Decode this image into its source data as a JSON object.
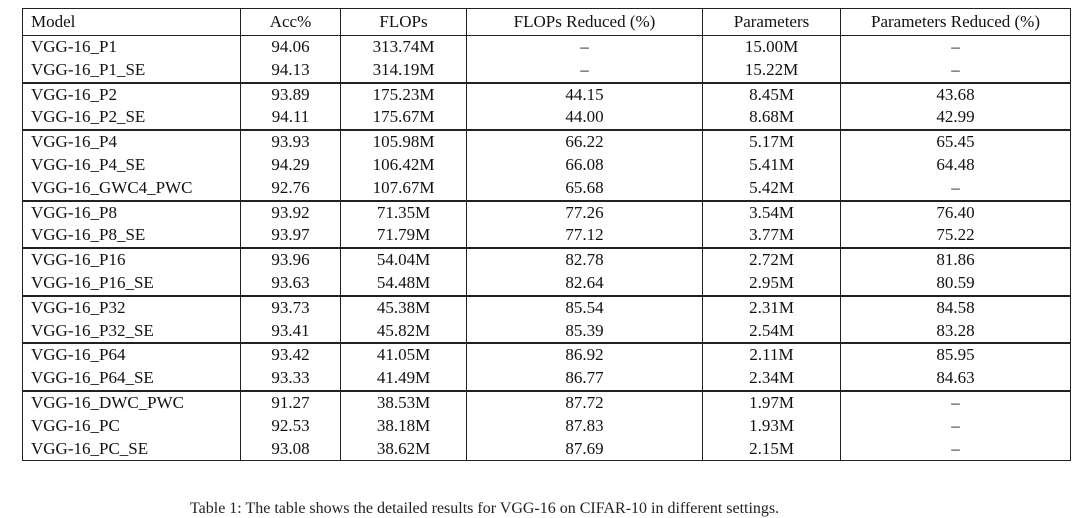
{
  "table": {
    "headers": [
      "Model",
      "Acc%",
      "FLOPs",
      "FLOPs Reduced (%)",
      "Parameters",
      "Parameters Reduced (%)"
    ],
    "groups": [
      [
        [
          "VGG-16_P1",
          "94.06",
          "313.74M",
          "–",
          "15.00M",
          "–"
        ],
        [
          "VGG-16_P1_SE",
          "94.13",
          "314.19M",
          "–",
          "15.22M",
          "–"
        ]
      ],
      [
        [
          "VGG-16_P2",
          "93.89",
          "175.23M",
          "44.15",
          "8.45M",
          "43.68"
        ],
        [
          "VGG-16_P2_SE",
          "94.11",
          "175.67M",
          "44.00",
          "8.68M",
          "42.99"
        ]
      ],
      [
        [
          "VGG-16_P4",
          "93.93",
          "105.98M",
          "66.22",
          "5.17M",
          "65.45"
        ],
        [
          "VGG-16_P4_SE",
          "94.29",
          "106.42M",
          "66.08",
          "5.41M",
          "64.48"
        ],
        [
          "VGG-16_GWC4_PWC",
          "92.76",
          "107.67M",
          "65.68",
          "5.42M",
          "–"
        ]
      ],
      [
        [
          "VGG-16_P8",
          "93.92",
          "71.35M",
          "77.26",
          "3.54M",
          "76.40"
        ],
        [
          "VGG-16_P8_SE",
          "93.97",
          "71.79M",
          "77.12",
          "3.77M",
          "75.22"
        ]
      ],
      [
        [
          "VGG-16_P16",
          "93.96",
          "54.04M",
          "82.78",
          "2.72M",
          "81.86"
        ],
        [
          "VGG-16_P16_SE",
          "93.63",
          "54.48M",
          "82.64",
          "2.95M",
          "80.59"
        ]
      ],
      [
        [
          "VGG-16_P32",
          "93.73",
          "45.38M",
          "85.54",
          "2.31M",
          "84.58"
        ],
        [
          "VGG-16_P32_SE",
          "93.41",
          "45.82M",
          "85.39",
          "2.54M",
          "83.28"
        ]
      ],
      [
        [
          "VGG-16_P64",
          "93.42",
          "41.05M",
          "86.92",
          "2.11M",
          "85.95"
        ],
        [
          "VGG-16_P64_SE",
          "93.33",
          "41.49M",
          "86.77",
          "2.34M",
          "84.63"
        ]
      ],
      [
        [
          "VGG-16_DWC_PWC",
          "91.27",
          "38.53M",
          "87.72",
          "1.97M",
          "–"
        ],
        [
          "VGG-16_PC",
          "92.53",
          "38.18M",
          "87.83",
          "1.93M",
          "–"
        ],
        [
          "VGG-16_PC_SE",
          "93.08",
          "38.62M",
          "87.69",
          "2.15M",
          "–"
        ]
      ]
    ]
  },
  "caption": "Table 1: The table shows the detailed results for VGG-16 on CIFAR-10 in different settings."
}
